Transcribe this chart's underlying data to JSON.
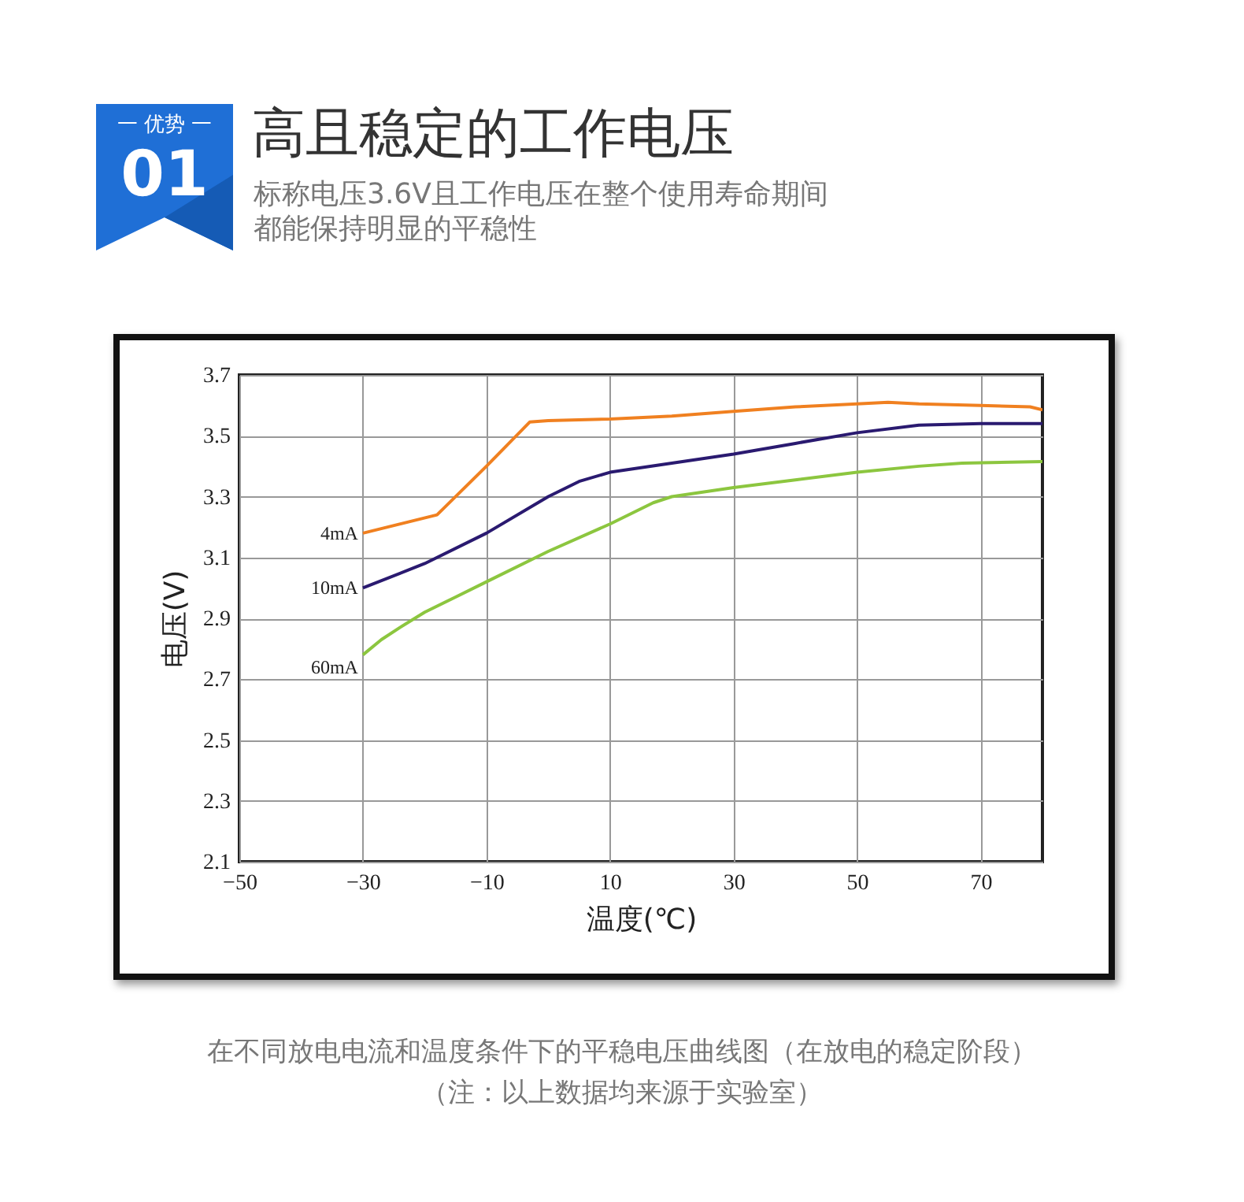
{
  "chart_data": {
    "type": "line",
    "title": "高且稳定的工作电压",
    "subtitle": "标称电压3.6V且工作电压在整个使用寿命期间都能保持明显的平稳性",
    "xlabel": "温度(℃)",
    "ylabel": "电压(V)",
    "annotations": [
      "一 优势 一",
      "01",
      "在不同放电电流和温度条件下的平稳电压曲线图（在放电的稳定阶段）",
      "（注：以上数据均来源于实验室）"
    ],
    "xlim": [
      -50,
      80
    ],
    "xticks": [
      -50,
      -30,
      -10,
      10,
      30,
      50,
      70
    ],
    "ylim": [
      2.1,
      3.7
    ],
    "yticks": [
      2.1,
      2.3,
      2.5,
      2.7,
      2.9,
      3.1,
      3.3,
      3.5,
      3.7
    ],
    "grid": true,
    "series": [
      {
        "name": "4mA",
        "color": "#f08020",
        "x": [
          -30,
          -18,
          -10,
          -3,
          0,
          10,
          20,
          30,
          40,
          50,
          55,
          60,
          70,
          78,
          80
        ],
        "values": [
          3.18,
          3.24,
          3.4,
          3.545,
          3.55,
          3.555,
          3.565,
          3.58,
          3.595,
          3.605,
          3.61,
          3.605,
          3.6,
          3.595,
          3.585
        ]
      },
      {
        "name": "10mA",
        "color": "#2a1a70",
        "x": [
          -30,
          -20,
          -10,
          0,
          5,
          10,
          20,
          30,
          40,
          50,
          60,
          70,
          80
        ],
        "values": [
          3.0,
          3.08,
          3.18,
          3.3,
          3.35,
          3.38,
          3.41,
          3.44,
          3.475,
          3.51,
          3.535,
          3.54,
          3.54
        ]
      },
      {
        "name": "60mA",
        "color": "#8cc63f",
        "x": [
          -30,
          -27,
          -24,
          -20,
          -15,
          -10,
          0,
          10,
          17,
          20,
          30,
          40,
          50,
          60,
          67,
          80
        ],
        "values": [
          2.78,
          2.83,
          2.87,
          2.92,
          2.97,
          3.02,
          3.12,
          3.21,
          3.28,
          3.3,
          3.33,
          3.355,
          3.38,
          3.4,
          3.41,
          3.415
        ]
      }
    ]
  }
}
